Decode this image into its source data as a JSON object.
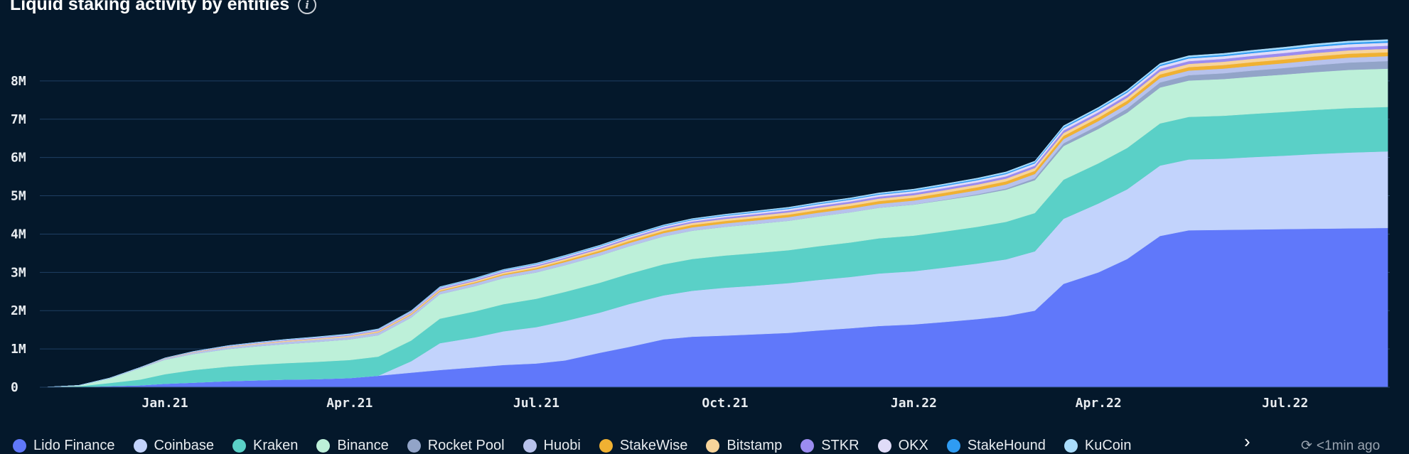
{
  "header": {
    "title": "Liquid staking activity by entities",
    "info_icon": "info-icon"
  },
  "footer": {
    "updated": "<1min ago",
    "next_icon": "chevron-right-icon",
    "refresh_icon": "refresh-icon"
  },
  "chart_data": {
    "type": "area",
    "stacked": true,
    "title": "Liquid staking activity by entities",
    "grid": true,
    "legend_position": "bottom",
    "y_ticks": [
      {
        "value": 0,
        "label": "0"
      },
      {
        "value": 1000000,
        "label": "1M"
      },
      {
        "value": 2000000,
        "label": "2M"
      },
      {
        "value": 3000000,
        "label": "3M"
      },
      {
        "value": 4000000,
        "label": "4M"
      },
      {
        "value": 5000000,
        "label": "5M"
      },
      {
        "value": 6000000,
        "label": "6M"
      },
      {
        "value": 7000000,
        "label": "7M"
      },
      {
        "value": 8000000,
        "label": "8M"
      }
    ],
    "x_ticks": [
      {
        "date": "2021-01-01",
        "label": "Jan.21"
      },
      {
        "date": "2021-04-01",
        "label": "Apr.21"
      },
      {
        "date": "2021-07-01",
        "label": "Jul.21"
      },
      {
        "date": "2021-10-01",
        "label": "Oct.21"
      },
      {
        "date": "2022-01-01",
        "label": "Jan.22"
      },
      {
        "date": "2022-04-01",
        "label": "Apr.22"
      },
      {
        "date": "2022-07-01",
        "label": "Jul.22"
      }
    ],
    "x": [
      "2020-11-03",
      "2020-11-20",
      "2020-12-05",
      "2020-12-20",
      "2021-01-01",
      "2021-01-15",
      "2021-02-01",
      "2021-02-15",
      "2021-03-01",
      "2021-03-15",
      "2021-04-01",
      "2021-04-15",
      "2021-05-01",
      "2021-05-15",
      "2021-06-01",
      "2021-06-15",
      "2021-07-01",
      "2021-07-15",
      "2021-08-01",
      "2021-08-15",
      "2021-09-01",
      "2021-09-15",
      "2021-10-01",
      "2021-10-15",
      "2021-11-01",
      "2021-11-15",
      "2021-12-01",
      "2021-12-15",
      "2022-01-01",
      "2022-01-15",
      "2022-02-01",
      "2022-02-15",
      "2022-03-01",
      "2022-03-15",
      "2022-04-01",
      "2022-04-15",
      "2022-05-01",
      "2022-05-15",
      "2022-06-01",
      "2022-06-15",
      "2022-07-01",
      "2022-07-15",
      "2022-08-01",
      "2022-08-20"
    ],
    "series": [
      {
        "name": "Lido Finance",
        "color": "#6078fa",
        "values": [
          0,
          5000,
          30000,
          50000,
          90000,
          120000,
          160000,
          180000,
          200000,
          210000,
          240000,
          300000,
          380000,
          450000,
          520000,
          580000,
          620000,
          700000,
          900000,
          1050000,
          1250000,
          1320000,
          1350000,
          1380000,
          1420000,
          1480000,
          1540000,
          1600000,
          1640000,
          1700000,
          1780000,
          1860000,
          2000000,
          2700000,
          3000000,
          3350000,
          3950000,
          4100000,
          4110000,
          4120000,
          4130000,
          4140000,
          4150000,
          4160000
        ]
      },
      {
        "name": "Coinbase",
        "color": "#c2d3fc",
        "values": [
          0,
          0,
          0,
          0,
          0,
          0,
          0,
          0,
          0,
          0,
          0,
          0,
          300000,
          700000,
          780000,
          880000,
          950000,
          1030000,
          1050000,
          1120000,
          1150000,
          1200000,
          1250000,
          1270000,
          1300000,
          1320000,
          1340000,
          1370000,
          1390000,
          1420000,
          1450000,
          1480000,
          1550000,
          1700000,
          1800000,
          1820000,
          1840000,
          1850000,
          1860000,
          1890000,
          1920000,
          1950000,
          1980000,
          2000000
        ]
      },
      {
        "name": "Kraken",
        "color": "#5ad0c7",
        "values": [
          0,
          20000,
          80000,
          150000,
          250000,
          330000,
          380000,
          410000,
          430000,
          450000,
          470000,
          500000,
          540000,
          640000,
          680000,
          710000,
          740000,
          760000,
          780000,
          790000,
          810000,
          830000,
          840000,
          850000,
          860000,
          880000,
          900000,
          920000,
          930000,
          940000,
          960000,
          980000,
          1000000,
          1020000,
          1050000,
          1080000,
          1100000,
          1110000,
          1120000,
          1130000,
          1140000,
          1150000,
          1160000,
          1160000
        ]
      },
      {
        "name": "Binance",
        "color": "#bdf0d9",
        "values": [
          0,
          20000,
          120000,
          300000,
          380000,
          420000,
          460000,
          480000,
          500000,
          520000,
          540000,
          560000,
          600000,
          640000,
          660000,
          680000,
          690000,
          700000,
          710000,
          720000,
          730000,
          740000,
          750000,
          760000,
          770000,
          780000,
          790000,
          800000,
          810000,
          820000,
          830000,
          840000,
          860000,
          880000,
          900000,
          920000,
          940000,
          950000,
          960000,
          970000,
          980000,
          990000,
          1000000,
          1000000
        ]
      },
      {
        "name": "Rocket Pool",
        "color": "#92a4c8",
        "values": [
          0,
          0,
          0,
          0,
          0,
          0,
          0,
          0,
          0,
          0,
          0,
          0,
          0,
          0,
          0,
          0,
          0,
          0,
          0,
          0,
          0,
          0,
          0,
          0,
          0,
          0,
          0,
          0,
          5000,
          10000,
          20000,
          30000,
          50000,
          70000,
          90000,
          110000,
          130000,
          140000,
          150000,
          160000,
          170000,
          180000,
          190000,
          200000
        ]
      },
      {
        "name": "Huobi",
        "color": "#b7c2ec",
        "values": [
          0,
          3000,
          10000,
          20000,
          30000,
          40000,
          50000,
          55000,
          60000,
          62000,
          65000,
          68000,
          70000,
          72000,
          74000,
          76000,
          78000,
          80000,
          82000,
          84000,
          86000,
          88000,
          90000,
          92000,
          94000,
          96000,
          98000,
          100000,
          102000,
          104000,
          106000,
          108000,
          110000,
          112000,
          114000,
          116000,
          118000,
          120000,
          122000,
          124000,
          126000,
          128000,
          130000,
          130000
        ]
      },
      {
        "name": "StakeWise",
        "color": "#f0b132",
        "values": [
          0,
          0,
          0,
          0,
          0,
          0,
          0,
          0,
          0,
          0,
          0,
          10000,
          15000,
          20000,
          25000,
          30000,
          35000,
          40000,
          45000,
          50000,
          55000,
          60000,
          62000,
          64000,
          66000,
          68000,
          70000,
          72000,
          74000,
          76000,
          78000,
          80000,
          82000,
          84000,
          86000,
          88000,
          90000,
          92000,
          94000,
          96000,
          98000,
          100000,
          100000,
          100000
        ]
      },
      {
        "name": "Bitstamp",
        "color": "#f7d49a",
        "values": [
          0,
          0,
          0,
          0,
          5000,
          10000,
          15000,
          20000,
          25000,
          28000,
          30000,
          32000,
          34000,
          36000,
          38000,
          40000,
          42000,
          44000,
          46000,
          48000,
          50000,
          52000,
          54000,
          56000,
          58000,
          60000,
          62000,
          64000,
          66000,
          68000,
          70000,
          72000,
          74000,
          76000,
          78000,
          80000,
          82000,
          84000,
          86000,
          88000,
          90000,
          90000,
          90000,
          90000
        ]
      },
      {
        "name": "STKR",
        "color": "#9b8cf0",
        "values": [
          0,
          0,
          0,
          0,
          5000,
          8000,
          10000,
          12000,
          14000,
          16000,
          18000,
          20000,
          22000,
          24000,
          26000,
          28000,
          30000,
          32000,
          34000,
          36000,
          38000,
          40000,
          42000,
          44000,
          46000,
          48000,
          50000,
          52000,
          54000,
          56000,
          58000,
          60000,
          62000,
          64000,
          66000,
          68000,
          70000,
          72000,
          74000,
          76000,
          78000,
          80000,
          80000,
          80000
        ]
      },
      {
        "name": "OKX",
        "color": "#e0dcf8",
        "values": [
          0,
          0,
          0,
          0,
          3000,
          5000,
          8000,
          10000,
          12000,
          14000,
          16000,
          18000,
          20000,
          22000,
          24000,
          26000,
          28000,
          30000,
          32000,
          34000,
          36000,
          38000,
          40000,
          42000,
          44000,
          46000,
          48000,
          50000,
          52000,
          54000,
          56000,
          58000,
          60000,
          62000,
          64000,
          66000,
          68000,
          70000,
          72000,
          74000,
          76000,
          78000,
          80000,
          80000
        ]
      },
      {
        "name": "StakeHound",
        "color": "#2f9cf2",
        "values": [
          0,
          0,
          0,
          0,
          2000,
          3000,
          4000,
          5000,
          6000,
          7000,
          8000,
          9000,
          10000,
          11000,
          12000,
          13000,
          14000,
          15000,
          16000,
          17000,
          18000,
          19000,
          20000,
          21000,
          22000,
          23000,
          24000,
          25000,
          26000,
          27000,
          28000,
          29000,
          30000,
          31000,
          32000,
          33000,
          34000,
          35000,
          36000,
          37000,
          38000,
          39000,
          40000,
          40000
        ]
      },
      {
        "name": "KuCoin",
        "color": "#a9dcfb",
        "values": [
          0,
          0,
          0,
          0,
          2000,
          3000,
          4000,
          5000,
          6000,
          7000,
          8000,
          9000,
          10000,
          11000,
          12000,
          13000,
          14000,
          15000,
          16000,
          17000,
          18000,
          19000,
          20000,
          21000,
          22000,
          23000,
          24000,
          25000,
          26000,
          27000,
          28000,
          29000,
          30000,
          31000,
          32000,
          33000,
          34000,
          35000,
          36000,
          37000,
          38000,
          39000,
          40000,
          40000
        ]
      }
    ]
  }
}
